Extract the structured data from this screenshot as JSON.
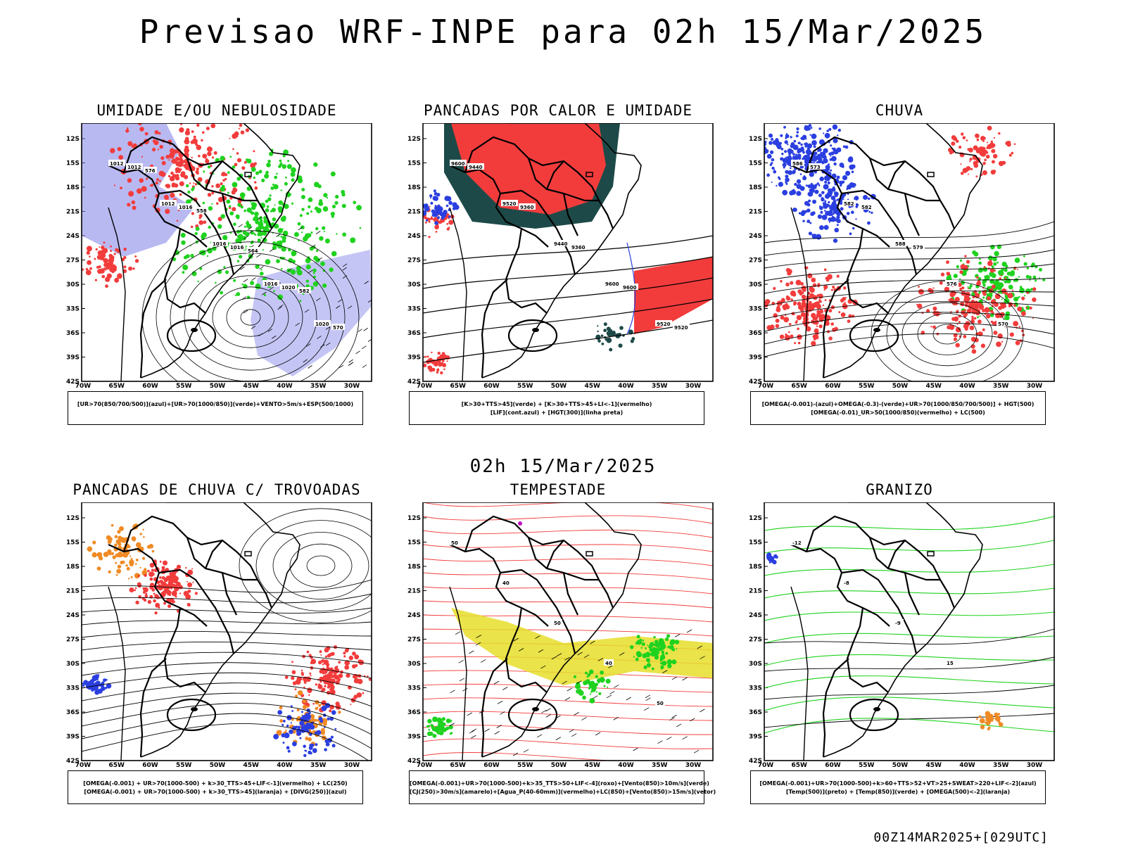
{
  "header": {
    "title": "Previsao WRF-INPE  para 02h 15/Mar/2025"
  },
  "mid": {
    "subtitle": "02h 15/Mar/2025"
  },
  "footer": {
    "run": "00Z14MAR2025+[029UTC]"
  },
  "axes": {
    "lat": [
      "12S",
      "15S",
      "18S",
      "21S",
      "24S",
      "27S",
      "30S",
      "33S",
      "36S",
      "39S",
      "42S"
    ],
    "lon": [
      "70W",
      "65W",
      "60W",
      "55W",
      "50W",
      "45W",
      "40W",
      "35W",
      "30W"
    ]
  },
  "colors": {
    "red": "#f23c3c",
    "green": "#1fd21f",
    "blue": "#2b3fe0",
    "purple": "#7f7fe8",
    "darkgreen": "#1d4a48",
    "yellow": "#e6de2a",
    "orange": "#f08a24",
    "magenta": "#c010c0"
  },
  "panels": [
    {
      "title": "UMIDADE E/OU NEBULOSIDADE",
      "legend": [
        "[UR>70(850/700/500)](azul)+[UR>70(1000/850)](verde)+VENTO>5m/s+ESP(500/1000)"
      ],
      "labels": [
        "1012",
        "1012",
        "1016",
        "1016",
        "1020",
        "1012",
        "1016",
        "1016",
        "1020",
        "570",
        "576",
        "558",
        "564",
        "582"
      ]
    },
    {
      "title": "PANCADAS POR CALOR E UMIDADE",
      "legend": [
        "[K>30+TTS>45](verde) + [K>30+TTS>45+LI<-1](vermelho)",
        "[LIF](cont.azul) + [HGT(300)](linha preta)"
      ],
      "labels": [
        "9600",
        "9520",
        "9440",
        "9600",
        "9520",
        "9440",
        "9360",
        "9360",
        "9600",
        "9520"
      ]
    },
    {
      "title": "CHUVA",
      "legend": [
        "[OMEGA(-0.001)-(azul)+OMEGA(-0.3)-(verde)+UR>70(1000/850/700/500)] + HGT(500)",
        "[OMEGA(-0.01)_UR>50(1000/850)(vermelho) + LC(500)"
      ],
      "labels": [
        "586",
        "582",
        "588",
        "576",
        "570",
        "573",
        "582",
        "579"
      ]
    },
    {
      "title": "PANCADAS DE CHUVA C/ TROVOADAS",
      "legend": [
        "[OMEGA(-0.001) + UR>70(1000-500) + k>30_TTS>45+LIF<-1](vermelho) + LC(250)",
        "[OMEGA(-0.001) + UR>70(1000-500) + k>30_TTS>45](laranja) + [DIVG(250)](azul)"
      ],
      "labels": []
    },
    {
      "title": "TEMPESTADE",
      "legend": [
        "[OMEGA(-0.001)+UR>70(1000-500)+k>35_TTS>50+LIF<-4](roxo)+[Vento(850)>10m/s](verde)",
        "[CJ(250)>30m/s](amarelo)+[Agua_P(40-60mm)](vermelho)+LC(850)+[Vento(850)>15m/s](vetor)"
      ],
      "labels": [
        "50",
        "40",
        "50",
        "40",
        "50"
      ]
    },
    {
      "title": "GRANIZO",
      "legend": [
        "[OMEGA(-0.001)+UR>70(1000-500)+k>60+TTS>52+VT>25+SWEAT>220+LIF<-2](azul)",
        "[Temp(500)](preto) + [Temp(850)](verde) + [OMEGA(500)<-2](laranja)"
      ],
      "labels": [
        "-12",
        "-8",
        "-9",
        "15"
      ]
    }
  ]
}
